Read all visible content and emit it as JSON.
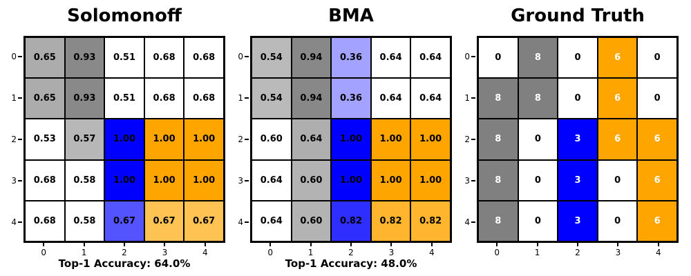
{
  "figure": {
    "background": "#ffffff"
  },
  "chart_data": [
    {
      "type": "heatmap",
      "title": "Solomonoff",
      "caption": "Top-1 Accuracy: 64.0%",
      "x_ticks": [
        "0",
        "1",
        "2",
        "3",
        "4"
      ],
      "y_ticks": [
        "0",
        "1",
        "2",
        "3",
        "4"
      ],
      "values": [
        [
          0.65,
          0.93,
          0.51,
          0.68,
          0.68
        ],
        [
          0.65,
          0.93,
          0.51,
          0.68,
          0.68
        ],
        [
          0.53,
          0.57,
          1.0,
          1.0,
          1.0
        ],
        [
          0.68,
          0.58,
          1.0,
          1.0,
          1.0
        ],
        [
          0.68,
          0.58,
          0.67,
          0.67,
          0.67
        ]
      ],
      "labels": [
        [
          "0.65",
          "0.93",
          "0.51",
          "0.68",
          "0.68"
        ],
        [
          "0.65",
          "0.93",
          "0.51",
          "0.68",
          "0.68"
        ],
        [
          "0.53",
          "0.57",
          "1.00",
          "1.00",
          "1.00"
        ],
        [
          "0.68",
          "0.58",
          "1.00",
          "1.00",
          "1.00"
        ],
        [
          "0.68",
          "0.58",
          "0.67",
          "0.67",
          "0.67"
        ]
      ],
      "colors": [
        [
          "#acacac",
          "#898989",
          "#ffffff",
          "#ffffff",
          "#ffffff"
        ],
        [
          "#acacac",
          "#898989",
          "#ffffff",
          "#ffffff",
          "#ffffff"
        ],
        [
          "#ffffff",
          "#b7b7b7",
          "#0000ff",
          "#ffa500",
          "#ffa500"
        ],
        [
          "#ffffff",
          "#ffffff",
          "#0000ff",
          "#ffa500",
          "#ffa500"
        ],
        [
          "#ffffff",
          "#ffffff",
          "#5454ff",
          "#ffc354",
          "#ffc354"
        ]
      ],
      "label_colors": [
        [
          "#000000",
          "#000000",
          "#000000",
          "#000000",
          "#000000"
        ],
        [
          "#000000",
          "#000000",
          "#000000",
          "#000000",
          "#000000"
        ],
        [
          "#000000",
          "#000000",
          "#000000",
          "#000000",
          "#000000"
        ],
        [
          "#000000",
          "#000000",
          "#000000",
          "#000000",
          "#000000"
        ],
        [
          "#000000",
          "#000000",
          "#000000",
          "#000000",
          "#000000"
        ]
      ]
    },
    {
      "type": "heatmap",
      "title": "BMA",
      "caption": "Top-1 Accuracy: 48.0%",
      "x_ticks": [
        "0",
        "1",
        "2",
        "3",
        "4"
      ],
      "y_ticks": [
        "0",
        "1",
        "2",
        "3",
        "4"
      ],
      "values": [
        [
          0.54,
          0.94,
          0.36,
          0.64,
          0.64
        ],
        [
          0.54,
          0.94,
          0.36,
          0.64,
          0.64
        ],
        [
          0.6,
          0.64,
          1.0,
          1.0,
          1.0
        ],
        [
          0.64,
          0.6,
          1.0,
          1.0,
          1.0
        ],
        [
          0.64,
          0.6,
          0.82,
          0.82,
          0.82
        ]
      ],
      "labels": [
        [
          "0.54",
          "0.94",
          "0.36",
          "0.64",
          "0.64"
        ],
        [
          "0.54",
          "0.94",
          "0.36",
          "0.64",
          "0.64"
        ],
        [
          "0.60",
          "0.64",
          "1.00",
          "1.00",
          "1.00"
        ],
        [
          "0.64",
          "0.60",
          "1.00",
          "1.00",
          "1.00"
        ],
        [
          "0.64",
          "0.60",
          "0.82",
          "0.82",
          "0.82"
        ]
      ],
      "colors": [
        [
          "#bababa",
          "#888888",
          "#a3a3ff",
          "#ffffff",
          "#ffffff"
        ],
        [
          "#bababa",
          "#888888",
          "#a3a3ff",
          "#ffffff",
          "#ffffff"
        ],
        [
          "#ffffff",
          "#aeaeae",
          "#0000ff",
          "#ffa500",
          "#ffa500"
        ],
        [
          "#ffffff",
          "#b3b3b3",
          "#0000ff",
          "#ffa500",
          "#ffa500"
        ],
        [
          "#ffffff",
          "#b3b3b3",
          "#2e2eff",
          "#ffb52e",
          "#ffb52e"
        ]
      ],
      "label_colors": [
        [
          "#000000",
          "#000000",
          "#000000",
          "#000000",
          "#000000"
        ],
        [
          "#000000",
          "#000000",
          "#000000",
          "#000000",
          "#000000"
        ],
        [
          "#000000",
          "#000000",
          "#000000",
          "#000000",
          "#000000"
        ],
        [
          "#000000",
          "#000000",
          "#000000",
          "#000000",
          "#000000"
        ],
        [
          "#000000",
          "#000000",
          "#000000",
          "#000000",
          "#000000"
        ]
      ]
    },
    {
      "type": "heatmap",
      "title": "Ground Truth",
      "x_ticks": [
        "0",
        "1",
        "2",
        "3",
        "4"
      ],
      "y_ticks": [
        "0",
        "1",
        "2",
        "3",
        "4"
      ],
      "values": [
        [
          0,
          8,
          0,
          6,
          0
        ],
        [
          8,
          8,
          0,
          6,
          0
        ],
        [
          8,
          0,
          3,
          6,
          6
        ],
        [
          8,
          0,
          3,
          0,
          6
        ],
        [
          8,
          0,
          3,
          0,
          6
        ]
      ],
      "labels": [
        [
          "0",
          "8",
          "0",
          "6",
          "0"
        ],
        [
          "8",
          "8",
          "0",
          "6",
          "0"
        ],
        [
          "8",
          "0",
          "3",
          "6",
          "6"
        ],
        [
          "8",
          "0",
          "3",
          "0",
          "6"
        ],
        [
          "8",
          "0",
          "3",
          "0",
          "6"
        ]
      ],
      "colors": [
        [
          "#ffffff",
          "#808080",
          "#ffffff",
          "#ffa500",
          "#ffffff"
        ],
        [
          "#808080",
          "#808080",
          "#ffffff",
          "#ffa500",
          "#ffffff"
        ],
        [
          "#808080",
          "#ffffff",
          "#0000ff",
          "#ffa500",
          "#ffa500"
        ],
        [
          "#808080",
          "#ffffff",
          "#0000ff",
          "#ffffff",
          "#ffa500"
        ],
        [
          "#808080",
          "#ffffff",
          "#0000ff",
          "#ffffff",
          "#ffa500"
        ]
      ],
      "label_colors": [
        [
          "#000000",
          "#ffffff",
          "#000000",
          "#ffffff",
          "#000000"
        ],
        [
          "#ffffff",
          "#ffffff",
          "#000000",
          "#ffffff",
          "#000000"
        ],
        [
          "#ffffff",
          "#000000",
          "#ffffff",
          "#ffffff",
          "#ffffff"
        ],
        [
          "#ffffff",
          "#000000",
          "#ffffff",
          "#000000",
          "#ffffff"
        ],
        [
          "#ffffff",
          "#000000",
          "#ffffff",
          "#000000",
          "#ffffff"
        ]
      ]
    }
  ]
}
